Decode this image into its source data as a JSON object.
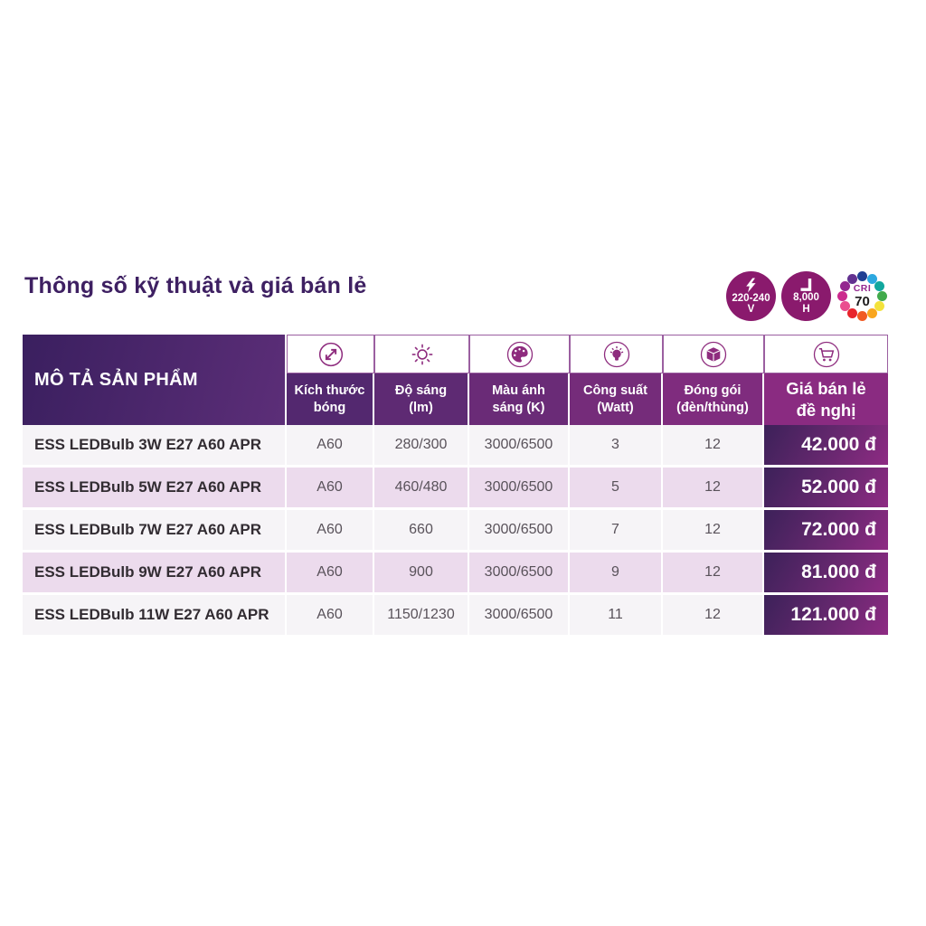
{
  "header": {
    "title": "Thông số kỹ thuật và giá bán lẻ"
  },
  "badges": {
    "voltage": {
      "value": "220-240",
      "unit": "V"
    },
    "lifetime": {
      "value": "8,000",
      "unit": "H"
    },
    "cri": {
      "label": "CRI",
      "value": "70",
      "dot_colors": [
        "#203f93",
        "#2ca8e0",
        "#12a79e",
        "#41aa4b",
        "#f3e23b",
        "#f9a61e",
        "#f15a22",
        "#e8242b",
        "#ea4d8f",
        "#cc2a8e",
        "#93278f",
        "#633190"
      ]
    }
  },
  "table": {
    "product_header": "MÔ TẢ SẢN PHẨM",
    "columns": [
      {
        "id": "size",
        "label": "Kích thước\nbóng",
        "icon": "dimension-icon"
      },
      {
        "id": "lumens",
        "label": "Độ sáng\n(lm)",
        "icon": "brightness-icon"
      },
      {
        "id": "color_temp",
        "label": "Màu ánh\nsáng (K)",
        "icon": "palette-icon"
      },
      {
        "id": "wattage",
        "label": "Công suất\n(Watt)",
        "icon": "bulb-icon"
      },
      {
        "id": "packaging",
        "label": "Đóng gói\n(đèn/thùng)",
        "icon": "package-icon"
      },
      {
        "id": "price",
        "label": "Giá bán lẻ\nđề nghị",
        "icon": "cart-icon"
      }
    ],
    "rows": [
      {
        "product": "ESS LEDBulb 3W E27 A60 APR",
        "size": "A60",
        "lumens": "280/300",
        "color_temp": "3000/6500",
        "wattage": "3",
        "packaging": "12",
        "price": "42.000 đ"
      },
      {
        "product": "ESS LEDBulb 5W E27 A60 APR",
        "size": "A60",
        "lumens": "460/480",
        "color_temp": "3000/6500",
        "wattage": "5",
        "packaging": "12",
        "price": "52.000 đ"
      },
      {
        "product": "ESS LEDBulb 7W E27 A60 APR",
        "size": "A60",
        "lumens": "660",
        "color_temp": "3000/6500",
        "wattage": "7",
        "packaging": "12",
        "price": "72.000 đ"
      },
      {
        "product": "ESS LEDBulb 9W E27 A60 APR",
        "size": "A60",
        "lumens": "900",
        "color_temp": "3000/6500",
        "wattage": "9",
        "packaging": "12",
        "price": "81.000 đ"
      },
      {
        "product": "ESS LEDBulb 11W E27 A60 APR",
        "size": "A60",
        "lumens": "1150/1230",
        "color_temp": "3000/6500",
        "wattage": "11",
        "packaging": "12",
        "price": "121.000 đ"
      }
    ]
  },
  "colors": {
    "title_text": "#3e2062",
    "header_dark_purple": "#3a1f5f",
    "header_magenta": "#8a2b81",
    "badge_circle": "#8a1a6d",
    "icon_stroke": "#8e2c7e",
    "row_light": "#f6f4f7",
    "row_alt_pink": "#ecdbed",
    "price_gradient_start": "#3c2159",
    "price_gradient_end": "#8e2b83"
  }
}
